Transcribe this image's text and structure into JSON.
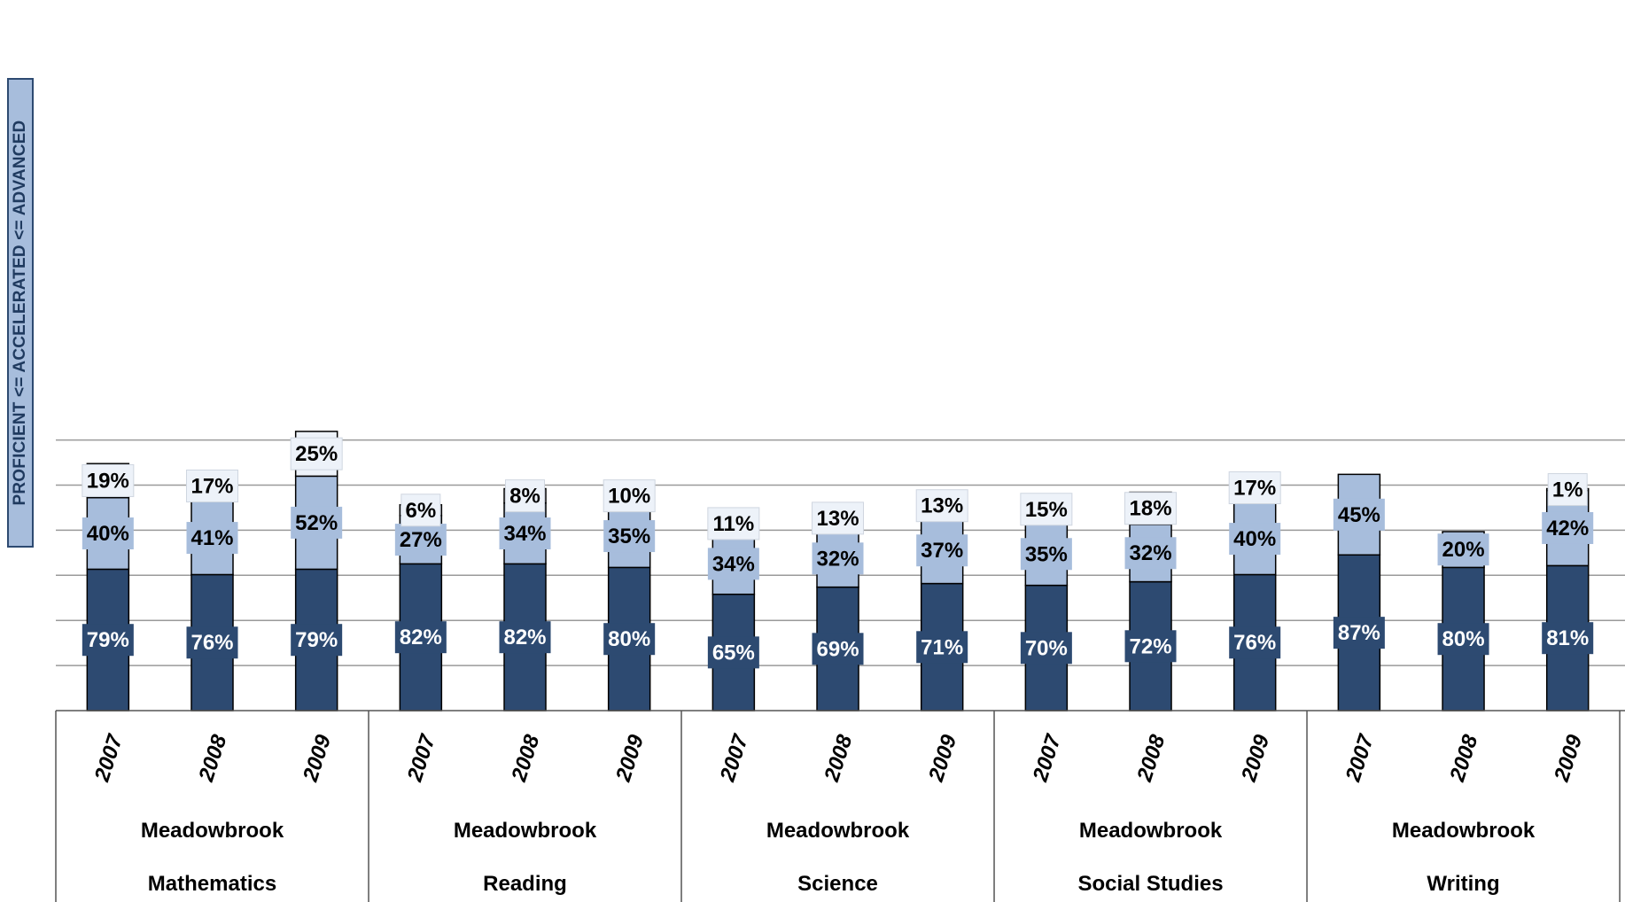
{
  "chart_data": {
    "type": "bar",
    "stacked": true,
    "ylabel": "PROFICIENT <= ACCELERATED <= ADVANCED",
    "groups": [
      {
        "school": "Meadowbrook",
        "subject": "Mathematics",
        "years": [
          "2007",
          "2008",
          "2009"
        ]
      },
      {
        "school": "Meadowbrook",
        "subject": "Reading",
        "years": [
          "2007",
          "2008",
          "2009"
        ]
      },
      {
        "school": "Meadowbrook",
        "subject": "Science",
        "years": [
          "2007",
          "2008",
          "2009"
        ]
      },
      {
        "school": "Meadowbrook",
        "subject": "Social Studies",
        "years": [
          "2007",
          "2008",
          "2009"
        ]
      },
      {
        "school": "Meadowbrook",
        "subject": "Writing",
        "years": [
          "2007",
          "2008",
          "2009"
        ]
      }
    ],
    "series": [
      {
        "values": [
          79,
          76,
          79,
          82,
          82,
          80,
          65,
          69,
          71,
          70,
          72,
          76,
          87,
          80,
          81
        ],
        "labels": [
          "79%",
          "76%",
          "79%",
          "82%",
          "82%",
          "80%",
          "65%",
          "69%",
          "71%",
          "70%",
          "72%",
          "76%",
          "87%",
          "80%",
          "81%"
        ]
      },
      {
        "values": [
          40,
          41,
          52,
          27,
          34,
          35,
          34,
          32,
          37,
          35,
          32,
          40,
          45,
          20,
          42
        ],
        "labels": [
          "40%",
          "41%",
          "52%",
          "27%",
          "34%",
          "35%",
          "34%",
          "32%",
          "37%",
          "35%",
          "32%",
          "40%",
          "45%",
          "20%",
          "42%"
        ]
      },
      {
        "values": [
          19,
          17,
          25,
          6,
          8,
          10,
          11,
          13,
          13,
          15,
          18,
          17,
          null,
          null,
          1
        ],
        "labels": [
          "19%",
          "17%",
          "25%",
          "6%",
          "8%",
          "10%",
          "11%",
          "13%",
          "13%",
          "15%",
          "18%",
          "17%",
          "",
          "",
          "1%"
        ]
      }
    ],
    "ylim": [
      0,
      155
    ],
    "grid": true,
    "colors": {
      "proficient": "#2d4a71",
      "accelerated": "#a7bddc",
      "advanced": "#edf2f9",
      "border": "#000000",
      "grid": "#9a9a9a",
      "label_dark_text": "#ffffff",
      "label_light_text": "#000000"
    }
  }
}
